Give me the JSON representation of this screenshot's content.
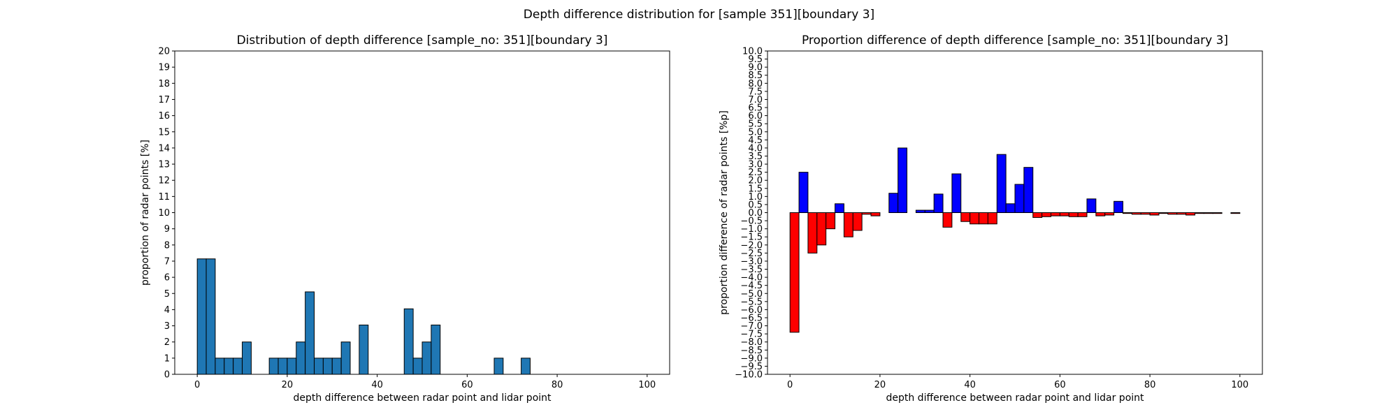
{
  "figure": {
    "suptitle": "Depth difference distribution for [sample 351][boundary 3]"
  },
  "colors": {
    "hist_fill": "#1f77b4",
    "positive_fill": "#0000ff",
    "negative_fill": "#ff0000",
    "edge": "#000000"
  },
  "chart_data": [
    {
      "type": "bar",
      "title": "Distribution of depth difference [sample_no: 351][boundary 3]",
      "xlabel": "depth difference between radar point and lidar point",
      "ylabel": "proportion of radar points [%]",
      "xlim": [
        -5,
        105
      ],
      "ylim": [
        0,
        20
      ],
      "bin_width": 2,
      "xticks": [
        0,
        20,
        40,
        60,
        80,
        100
      ],
      "yticks": [
        0,
        1,
        2,
        3,
        4,
        5,
        6,
        7,
        8,
        9,
        10,
        11,
        12,
        13,
        14,
        15,
        16,
        17,
        18,
        19,
        20
      ],
      "grid": false,
      "bin_starts": [
        0,
        2,
        4,
        6,
        8,
        10,
        12,
        14,
        16,
        18,
        20,
        22,
        24,
        26,
        28,
        30,
        32,
        34,
        36,
        38,
        40,
        42,
        44,
        46,
        48,
        50,
        52,
        54,
        56,
        58,
        60,
        62,
        64,
        66,
        68,
        70,
        72,
        74,
        76,
        78,
        80,
        82,
        84,
        86,
        88,
        90,
        92,
        94,
        96,
        98
      ],
      "values": [
        7.14,
        7.14,
        1,
        1,
        1,
        2,
        0,
        0,
        1,
        1,
        1,
        2,
        5.1,
        1,
        1,
        1,
        2,
        0,
        3.05,
        0,
        0,
        0,
        0,
        4.05,
        1,
        2,
        3.05,
        0,
        0,
        0,
        0,
        0,
        0,
        1,
        0,
        0,
        1,
        0,
        0,
        0,
        0,
        0,
        0,
        0,
        0,
        0,
        0,
        0,
        0,
        0
      ]
    },
    {
      "type": "bar",
      "title": "Proportion difference of depth difference [sample_no: 351][boundary 3]",
      "xlabel": "depth difference between radar point and lidar point",
      "ylabel": "proportion difference of radar points [%p]",
      "xlim": [
        -5,
        105
      ],
      "ylim": [
        -10,
        10
      ],
      "bin_width": 2,
      "xticks": [
        0,
        20,
        40,
        60,
        80,
        100
      ],
      "yticks": [
        -10.0,
        -9.5,
        -9.0,
        -8.5,
        -8.0,
        -7.5,
        -7.0,
        -6.5,
        -6.0,
        -5.5,
        -5.0,
        -4.5,
        -4.0,
        -3.5,
        -3.0,
        -2.5,
        -2.0,
        -1.5,
        -1.0,
        -0.5,
        0.0,
        0.5,
        1.0,
        1.5,
        2.0,
        2.5,
        3.0,
        3.5,
        4.0,
        4.5,
        5.0,
        5.5,
        6.0,
        6.5,
        7.0,
        7.5,
        8.0,
        8.5,
        9.0,
        9.5,
        10.0
      ],
      "grid": false,
      "bin_starts": [
        0,
        2,
        4,
        6,
        8,
        10,
        12,
        14,
        16,
        18,
        20,
        22,
        24,
        26,
        28,
        30,
        32,
        34,
        36,
        38,
        40,
        42,
        44,
        46,
        48,
        50,
        52,
        54,
        56,
        58,
        60,
        62,
        64,
        66,
        68,
        70,
        72,
        74,
        76,
        78,
        80,
        82,
        84,
        86,
        88,
        90,
        92,
        94,
        96,
        98
      ],
      "values": [
        -7.4,
        2.5,
        -2.5,
        -2.0,
        -1.0,
        0.55,
        -1.5,
        -1.1,
        -0.1,
        -0.2,
        0.0,
        1.2,
        4.0,
        0.0,
        0.15,
        0.15,
        1.15,
        -0.9,
        2.4,
        -0.55,
        -0.7,
        -0.7,
        -0.7,
        3.6,
        0.55,
        1.75,
        2.8,
        -0.3,
        -0.25,
        -0.2,
        -0.2,
        -0.25,
        -0.25,
        0.85,
        -0.2,
        -0.15,
        0.7,
        -0.05,
        -0.1,
        -0.1,
        -0.15,
        -0.05,
        -0.1,
        -0.1,
        -0.15,
        -0.05,
        -0.05,
        -0.05,
        0.0,
        -0.05
      ]
    }
  ]
}
